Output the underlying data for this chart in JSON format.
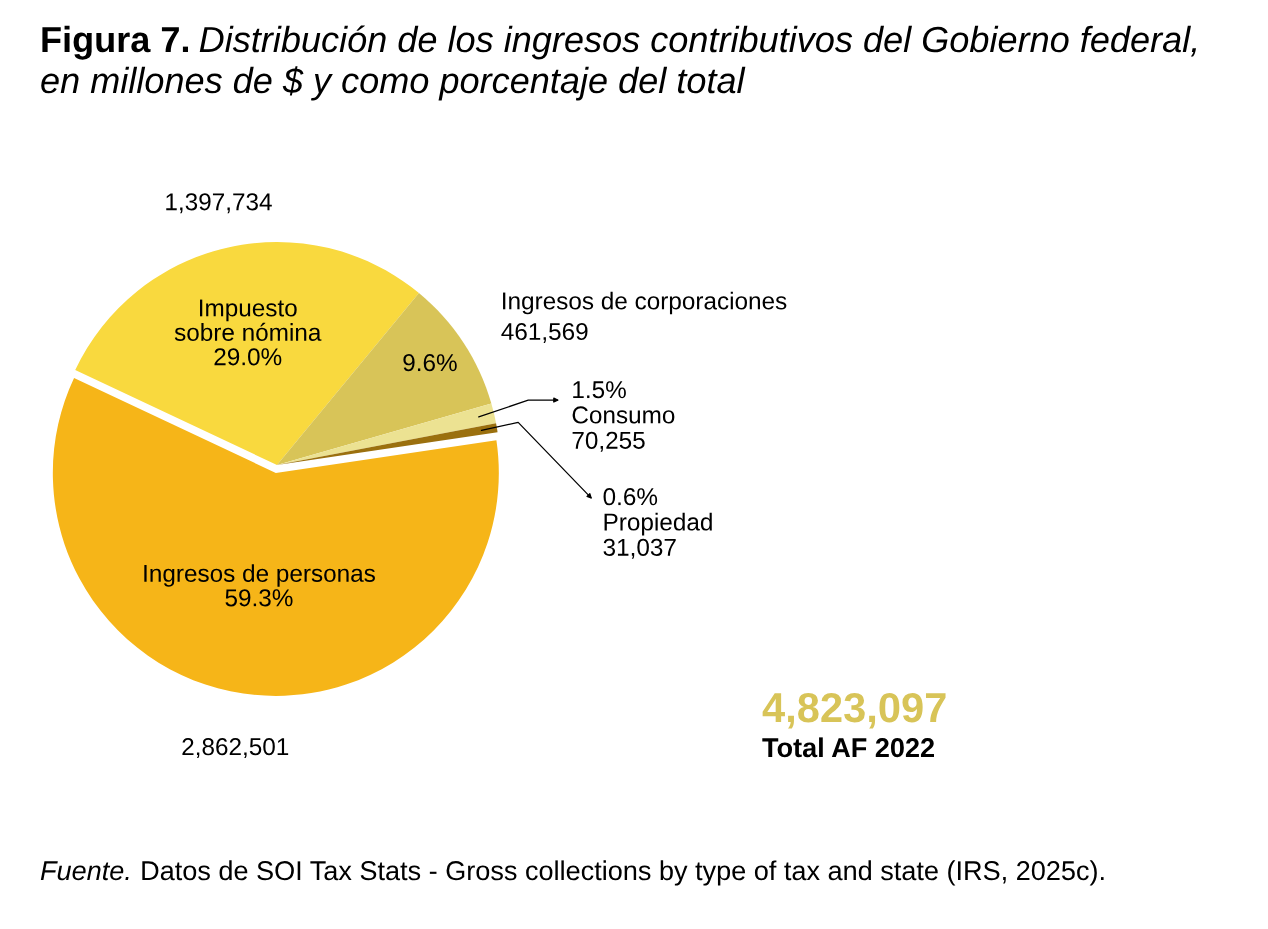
{
  "chart_data": {
    "type": "pie",
    "title": "Figura 7.",
    "subtitle": "Distribución de los ingresos contributivos del Gobierno federal,\nen millones de $ y como porcentaje del total",
    "categories": [
      "Impuesto\nsobre nómina",
      "Ingresos de corporaciones",
      "Consumo",
      "Propiedad",
      "Ingresos de personas"
    ],
    "values": [
      1397734,
      461569,
      70255,
      31037,
      2862501
    ],
    "colors": [
      "#f9d93e",
      "#d8c458",
      "#ece292",
      "#9b700e",
      "#f6b518"
    ],
    "value_labels": [
      "1,397,734",
      "461,569",
      "70,255",
      "31,037",
      "2,862,501"
    ],
    "annotations": [
      {
        "text": "29.0%",
        "x": "Impuesto\nsobre nómina"
      },
      {
        "text": "9.6%",
        "x": "Ingresos de corporaciones"
      },
      {
        "text": "1.5%",
        "x": "Consumo"
      },
      {
        "text": "0.6%",
        "x": "Propiedad"
      },
      {
        "text": "59.3%",
        "x": "Ingresos de personas"
      },
      "4,823,097",
      "Total AF 2022",
      "Fuente.",
      "Datos de SOI Tax Stats - Gross collections by type of tax and state (IRS, 2025c)."
    ]
  }
}
